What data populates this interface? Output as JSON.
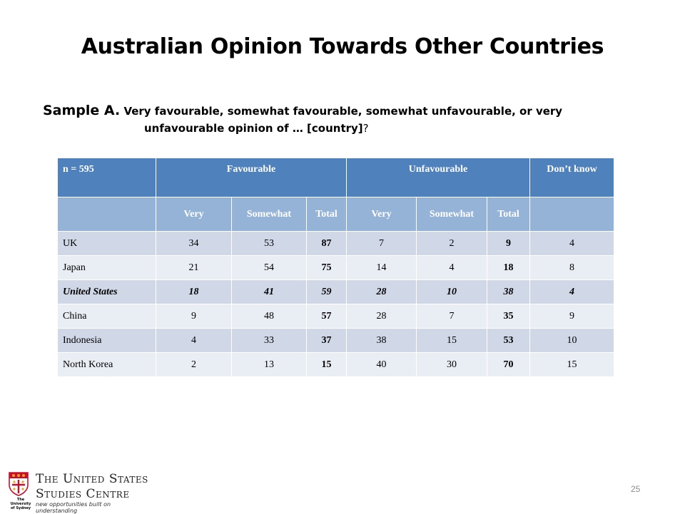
{
  "title": "Australian Opinion Towards Other Countries",
  "sample": {
    "lead": "Sample A.",
    "line1": "Very favourable, somewhat favourable, somewhat unfavourable, or very",
    "line2": "unfavourable opinion of … [country]",
    "qmark": "?"
  },
  "table": {
    "n_label": "n = 595",
    "groups": [
      "Favourable",
      "Unfavourable",
      "Don’t know"
    ],
    "subheaders": [
      "Very",
      "Somewhat",
      "Total",
      "Very",
      "Somewhat",
      "Total"
    ],
    "rows": [
      {
        "country": "UK",
        "values": [
          "34",
          "53",
          "87",
          "7",
          "2",
          "9",
          "4"
        ]
      },
      {
        "country": "Japan",
        "values": [
          "21",
          "54",
          "75",
          "14",
          "4",
          "18",
          "8"
        ]
      },
      {
        "country": "United States",
        "values": [
          "18",
          "41",
          "59",
          "28",
          "10",
          "38",
          "4"
        ]
      },
      {
        "country": "China",
        "values": [
          "9",
          "48",
          "57",
          "28",
          "7",
          "35",
          "9"
        ]
      },
      {
        "country": "Indonesia",
        "values": [
          "4",
          "33",
          "37",
          "38",
          "15",
          "53",
          "10"
        ]
      },
      {
        "country": "North Korea",
        "values": [
          "2",
          "13",
          "15",
          "40",
          "30",
          "70",
          "15"
        ]
      }
    ]
  },
  "page_number": "25",
  "footer": {
    "org_line1": "The United States",
    "org_line2": "Studies Centre",
    "tagline": "new opportunities built on understanding",
    "university": "The University of Sydney",
    "colors": {
      "crest_red": "#c8102e",
      "crest_gold": "#e6a817"
    }
  }
}
